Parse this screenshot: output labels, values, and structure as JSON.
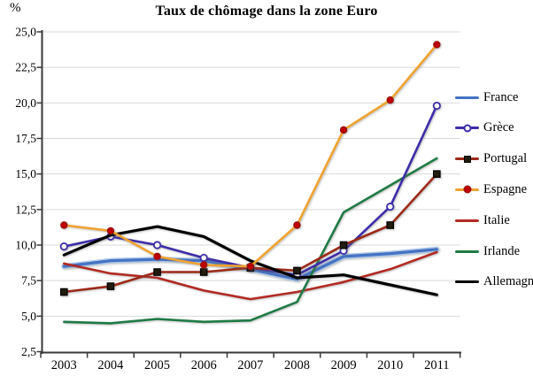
{
  "chart": {
    "title": "Taux de chômage dans la zone Euro",
    "y_unit": "%"
  },
  "chart_data": {
    "type": "line",
    "title": "Taux de chômage dans la zone Euro",
    "ylabel": "%",
    "x": [
      2003,
      2004,
      2005,
      2006,
      2007,
      2008,
      2009,
      2010,
      2011
    ],
    "ylim": [
      2.5,
      25.0
    ],
    "ytick_step": 2.5,
    "ytick_labels": [
      "2,5",
      "5,0",
      "7,5",
      "10,0",
      "12,5",
      "15,0",
      "17,5",
      "20,0",
      "22,5",
      "25,0"
    ],
    "grid": true,
    "legend_position": "right",
    "series": [
      {
        "name": "France",
        "color": "#4472C4",
        "halo": "#A9C6E8",
        "marker": "none",
        "values": [
          8.5,
          8.9,
          9.0,
          8.9,
          8.3,
          7.6,
          9.2,
          9.4,
          9.7
        ]
      },
      {
        "name": "Grèce",
        "color": "#3D2DA9",
        "marker": "circle-open",
        "marker_fill": "#FFFFFF",
        "values": [
          9.9,
          10.6,
          10.0,
          9.1,
          8.4,
          7.9,
          9.6,
          12.7,
          19.8
        ]
      },
      {
        "name": "Portugal",
        "color": "#9C2A18",
        "marker": "square",
        "marker_fill": "#211B0C",
        "values": [
          6.7,
          7.1,
          8.1,
          8.1,
          8.4,
          8.2,
          10.0,
          11.4,
          15.0
        ]
      },
      {
        "name": "Espagne",
        "color": "#F0A330",
        "marker": "circle",
        "marker_fill": "#C00000",
        "values": [
          11.4,
          11.0,
          9.2,
          8.6,
          8.5,
          11.4,
          18.1,
          20.2,
          24.1
        ]
      },
      {
        "name": "Italie",
        "color": "#B22A22",
        "marker": "none",
        "values": [
          8.7,
          8.0,
          7.7,
          6.8,
          6.2,
          6.7,
          7.4,
          8.3,
          9.5
        ]
      },
      {
        "name": "Irlande",
        "color": "#1F7A44",
        "marker": "none",
        "values": [
          4.6,
          4.5,
          4.8,
          4.6,
          4.7,
          6.0,
          12.3,
          14.2,
          16.1
        ]
      },
      {
        "name": "Allemagne",
        "color": "#000000",
        "marker": "none",
        "values": [
          9.3,
          10.7,
          11.3,
          10.6,
          8.9,
          7.7,
          7.9,
          7.2,
          6.5
        ]
      }
    ],
    "axis_color": "#3A3A3A",
    "grid_color": "#D9D9D9"
  }
}
